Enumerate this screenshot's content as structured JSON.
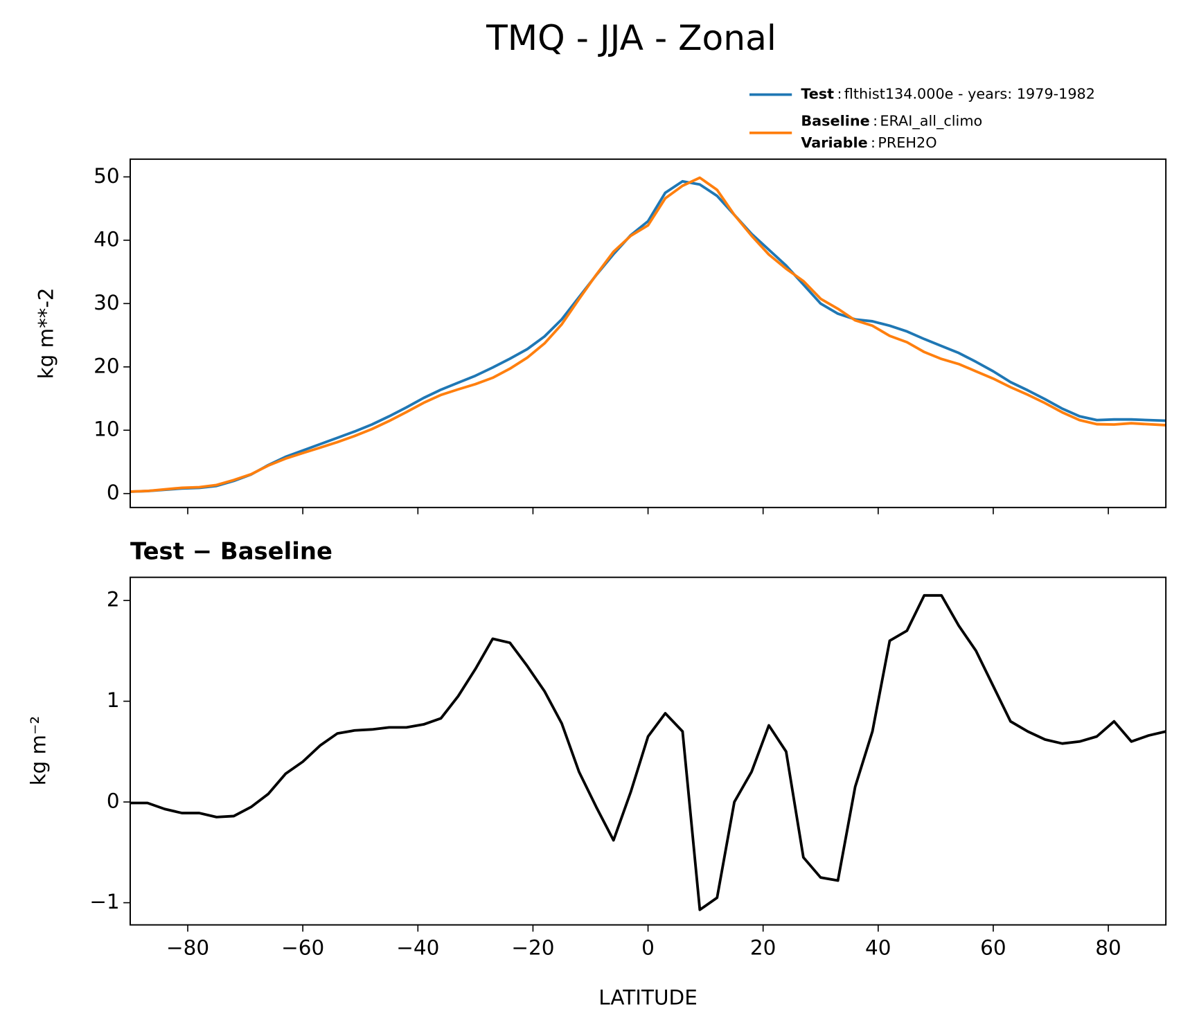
{
  "chart_data": [
    {
      "type": "line",
      "title": "TMQ - JJA - Zonal",
      "ylabel": "kg m**-2",
      "legend_separator": ":",
      "x": [
        -90,
        -87,
        -84,
        -81,
        -78,
        -75,
        -72,
        -69,
        -66,
        -63,
        -60,
        -57,
        -54,
        -51,
        -48,
        -45,
        -42,
        -39,
        -36,
        -33,
        -30,
        -27,
        -24,
        -21,
        -18,
        -15,
        -12,
        -9,
        -6,
        -3,
        0,
        3,
        6,
        9,
        12,
        15,
        18,
        21,
        24,
        27,
        30,
        33,
        36,
        39,
        42,
        45,
        48,
        51,
        54,
        57,
        60,
        63,
        66,
        69,
        72,
        75,
        78,
        81,
        84,
        87,
        90
      ],
      "series": [
        {
          "name": "Test",
          "label": "flthist134.000e - years: 1979-1982",
          "color": "#1f77b4",
          "values": [
            0.3,
            0.4,
            0.6,
            0.8,
            0.9,
            1.2,
            2,
            3,
            4.5,
            5.8,
            6.8,
            7.8,
            8.8,
            9.8,
            10.9,
            12.2,
            13.6,
            15.1,
            16.4,
            17.5,
            18.6,
            19.9,
            21.3,
            22.8,
            24.8,
            27.5,
            31,
            34.5,
            37.8,
            40.8,
            43,
            47.5,
            49.3,
            48.8,
            47,
            44,
            41,
            38.5,
            36,
            33,
            30,
            28.4,
            27.5,
            27.2,
            26.5,
            25.6,
            24.4,
            23.3,
            22.2,
            20.8,
            19.3,
            17.6,
            16.3,
            14.9,
            13.4,
            12.2,
            11.6,
            11.7,
            11.7,
            11.6,
            11.5
          ]
        },
        {
          "name": "Baseline",
          "label": "ERAI_all_climo",
          "variable_name": "Variable",
          "variable": "PREH2O",
          "color": "#ff7f0e",
          "values": [
            0.31,
            0.41,
            0.67,
            0.91,
            1.01,
            1.35,
            2.14,
            3.05,
            4.42,
            5.52,
            6.4,
            7.24,
            8.12,
            9.09,
            10.18,
            11.46,
            12.86,
            14.33,
            15.57,
            16.45,
            17.28,
            18.28,
            19.72,
            21.45,
            23.7,
            26.72,
            30.7,
            34.55,
            38.18,
            40.7,
            42.35,
            46.62,
            48.6,
            49.87,
            47.95,
            44,
            40.7,
            37.74,
            35.5,
            33.55,
            30.75,
            29.18,
            27.35,
            26.5,
            24.9,
            23.9,
            22.35,
            21.25,
            20.45,
            19.3,
            18.15,
            16.8,
            15.6,
            14.28,
            12.82,
            11.6,
            10.95,
            10.9,
            11.1,
            10.94,
            10.8
          ]
        }
      ],
      "xlim": [
        -90,
        90
      ],
      "ylim": [
        -2.2,
        52.8
      ],
      "yticks": [
        0,
        10,
        20,
        30,
        40,
        50
      ]
    },
    {
      "type": "line",
      "title": "Test − Baseline",
      "ylabel": "kg m⁻²",
      "xlabel": "LATITUDE",
      "x": [
        -90,
        -87,
        -84,
        -81,
        -78,
        -75,
        -72,
        -69,
        -66,
        -63,
        -60,
        -57,
        -54,
        -51,
        -48,
        -45,
        -42,
        -39,
        -36,
        -33,
        -30,
        -27,
        -24,
        -21,
        -18,
        -15,
        -12,
        -9,
        -6,
        -3,
        0,
        3,
        6,
        9,
        12,
        15,
        18,
        21,
        24,
        27,
        30,
        33,
        36,
        39,
        42,
        45,
        48,
        51,
        54,
        57,
        60,
        63,
        66,
        69,
        72,
        75,
        78,
        81,
        84,
        87,
        90
      ],
      "series": [
        {
          "color": "#000000",
          "values": [
            -0.01,
            -0.01,
            -0.07,
            -0.11,
            -0.11,
            -0.15,
            -0.14,
            -0.05,
            0.08,
            0.28,
            0.4,
            0.56,
            0.68,
            0.71,
            0.72,
            0.74,
            0.74,
            0.77,
            0.83,
            1.05,
            1.32,
            1.62,
            1.58,
            1.35,
            1.1,
            0.78,
            0.3,
            -0.05,
            -0.38,
            0.1,
            0.65,
            0.88,
            0.7,
            -1.07,
            -0.95,
            0,
            0.3,
            0.76,
            0.5,
            -0.55,
            -0.75,
            -0.78,
            0.15,
            0.7,
            1.6,
            1.7,
            2.05,
            2.05,
            1.75,
            1.5,
            1.15,
            0.8,
            0.7,
            0.62,
            0.58,
            0.6,
            0.65,
            0.8,
            0.6,
            0.66,
            0.7
          ]
        }
      ],
      "xlim": [
        -90,
        90
      ],
      "ylim": [
        -1.22,
        2.23
      ],
      "yticks": [
        {
          "value": -1,
          "label": "−1"
        },
        0,
        1,
        2
      ],
      "xticks": [
        {
          "value": -80,
          "label": "−80"
        },
        {
          "value": -60,
          "label": "−60"
        },
        {
          "value": -40,
          "label": "−40"
        },
        {
          "value": -20,
          "label": "−20"
        },
        0,
        20,
        40,
        60,
        80
      ]
    }
  ]
}
